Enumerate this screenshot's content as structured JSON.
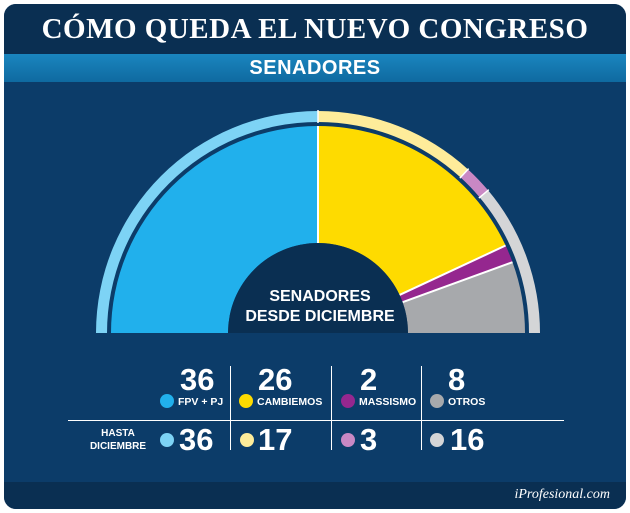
{
  "header": {
    "title": "CÓMO QUEDA EL NUEVO CONGRESO",
    "subtitle": "SENADORES"
  },
  "center_label": [
    "SENADORES",
    "DESDE DICIEMBRE"
  ],
  "footer": {
    "brand": "iProfesional.com"
  },
  "chart_data": {
    "type": "pie",
    "subtype": "semicircle-parliament",
    "title": "CÓMO QUEDA EL NUEVO CONGRESO",
    "subtitle": "SENADORES",
    "total_seats": 72,
    "inner_label": "SENADORES DESDE DICIEMBRE",
    "series": [
      {
        "name": "SENADORES DESDE DICIEMBRE",
        "values": [
          36,
          26,
          2,
          8
        ]
      },
      {
        "name": "HASTA DICIEMBRE",
        "values": [
          36,
          17,
          3,
          16
        ]
      }
    ],
    "categories": [
      "FPV + PJ",
      "CAMBIEMOS",
      "MASSISMO",
      "OTROS"
    ],
    "colors": [
      "#21b0ec",
      "#fedb00",
      "#95278f",
      "#a7a9ac"
    ],
    "colors_previous": [
      "#7dd3f5",
      "#feec9a",
      "#c988c4",
      "#d4d5d7"
    ],
    "current_values": [
      "36",
      "26",
      "2",
      "8"
    ],
    "previous_values": [
      "36",
      "17",
      "3",
      "16"
    ],
    "previous_label": [
      "HASTA",
      "DICIEMBRE"
    ]
  }
}
